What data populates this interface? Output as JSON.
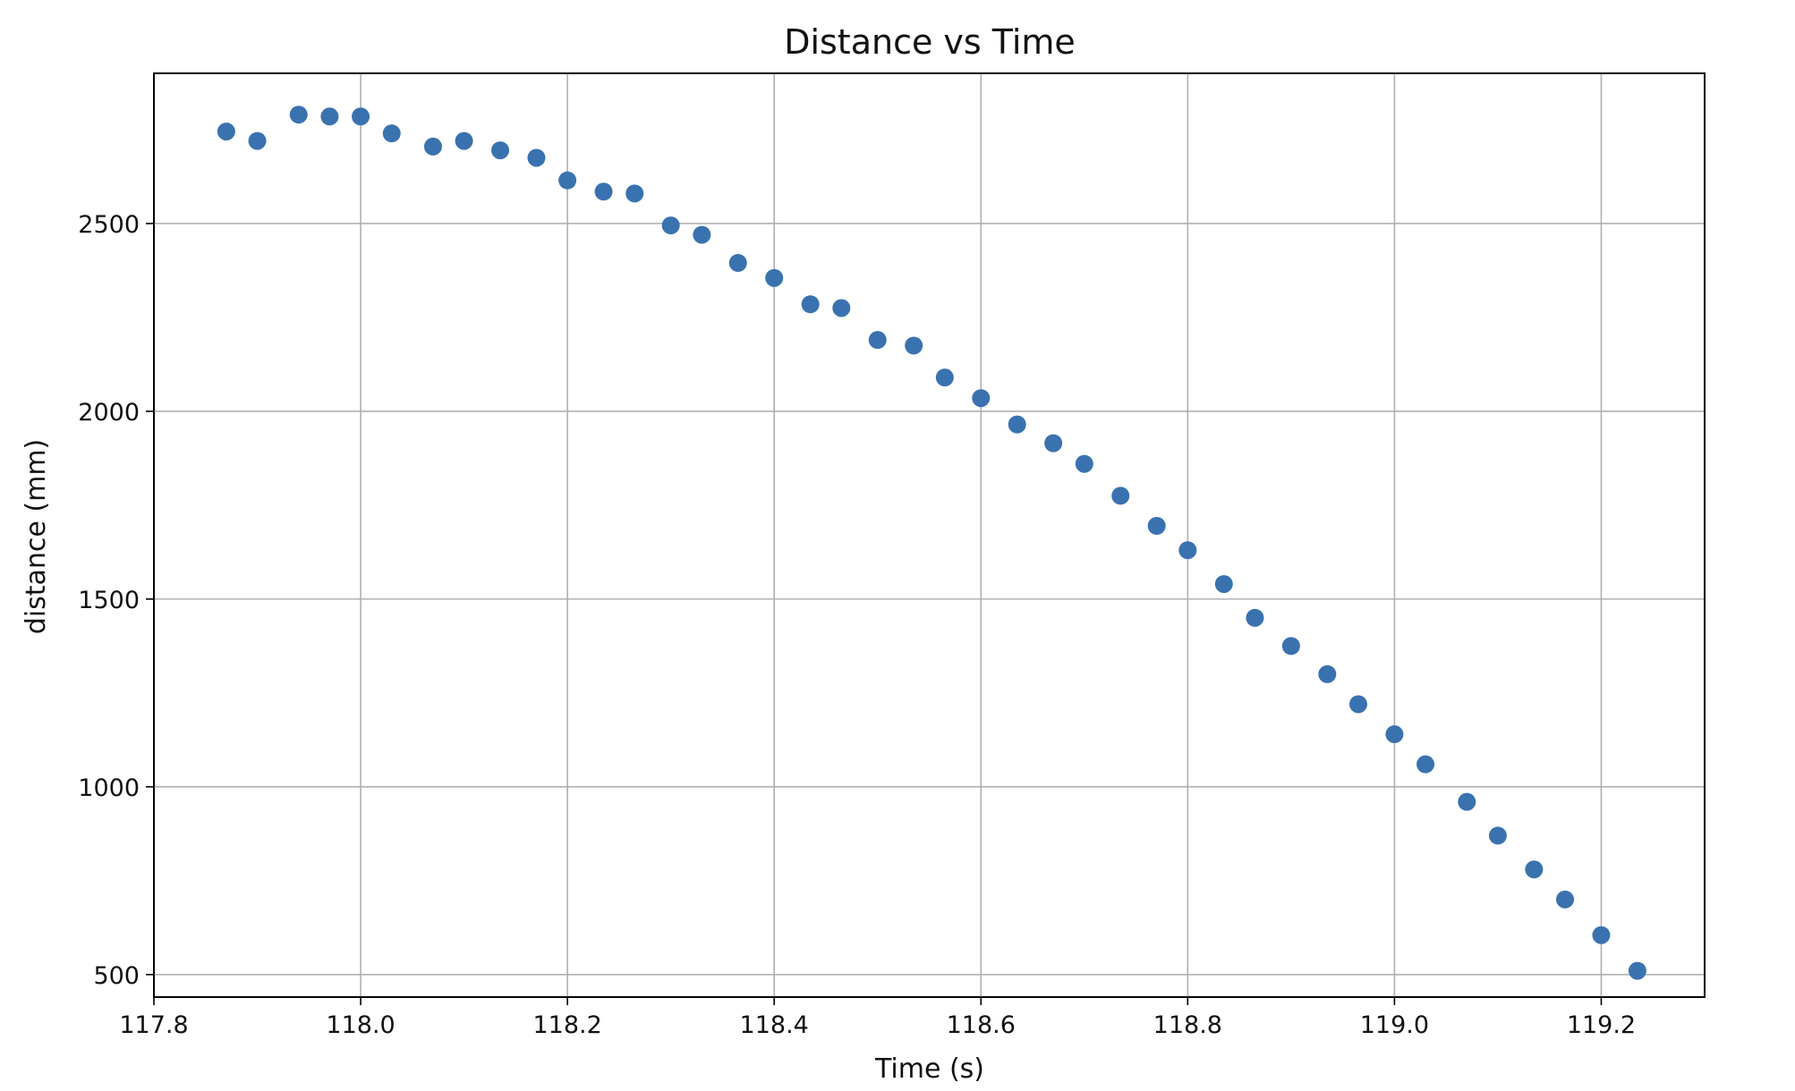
{
  "chart_data": {
    "type": "scatter",
    "title": "Distance vs Time",
    "xlabel": "Time (s)",
    "ylabel": "distance (mm)",
    "xlim": [
      117.8,
      119.3
    ],
    "ylim": [
      440,
      2900
    ],
    "xticks": [
      117.8,
      118.0,
      118.2,
      118.4,
      118.6,
      118.8,
      119.0,
      119.2
    ],
    "xtick_labels": [
      "117.8",
      "118.0",
      "118.2",
      "118.4",
      "118.6",
      "118.8",
      "119.0",
      "119.2"
    ],
    "yticks": [
      500,
      1000,
      1500,
      2000,
      2500
    ],
    "ytick_labels": [
      "500",
      "1000",
      "1500",
      "2000",
      "2500"
    ],
    "grid": true,
    "color": "#3a72b0",
    "series": [
      {
        "x": [
          117.87,
          117.9,
          117.94,
          117.97,
          118.0,
          118.03,
          118.07,
          118.1,
          118.135,
          118.17,
          118.2,
          118.235,
          118.265,
          118.3,
          118.33,
          118.365,
          118.4,
          118.435,
          118.465,
          118.5,
          118.535,
          118.565,
          118.6,
          118.635,
          118.67,
          118.7,
          118.735,
          118.77,
          118.8,
          118.835,
          118.865,
          118.9,
          118.935,
          118.965,
          119.0,
          119.03,
          119.07,
          119.1,
          119.135,
          119.165,
          119.2,
          119.235
        ],
        "y": [
          2745,
          2720,
          2790,
          2785,
          2785,
          2740,
          2705,
          2720,
          2695,
          2675,
          2615,
          2585,
          2580,
          2495,
          2470,
          2395,
          2355,
          2285,
          2275,
          2190,
          2175,
          2090,
          2035,
          1965,
          1915,
          1860,
          1775,
          1695,
          1630,
          1540,
          1450,
          1375,
          1300,
          1220,
          1140,
          1060,
          960,
          870,
          780,
          700,
          605,
          510
        ]
      }
    ]
  }
}
